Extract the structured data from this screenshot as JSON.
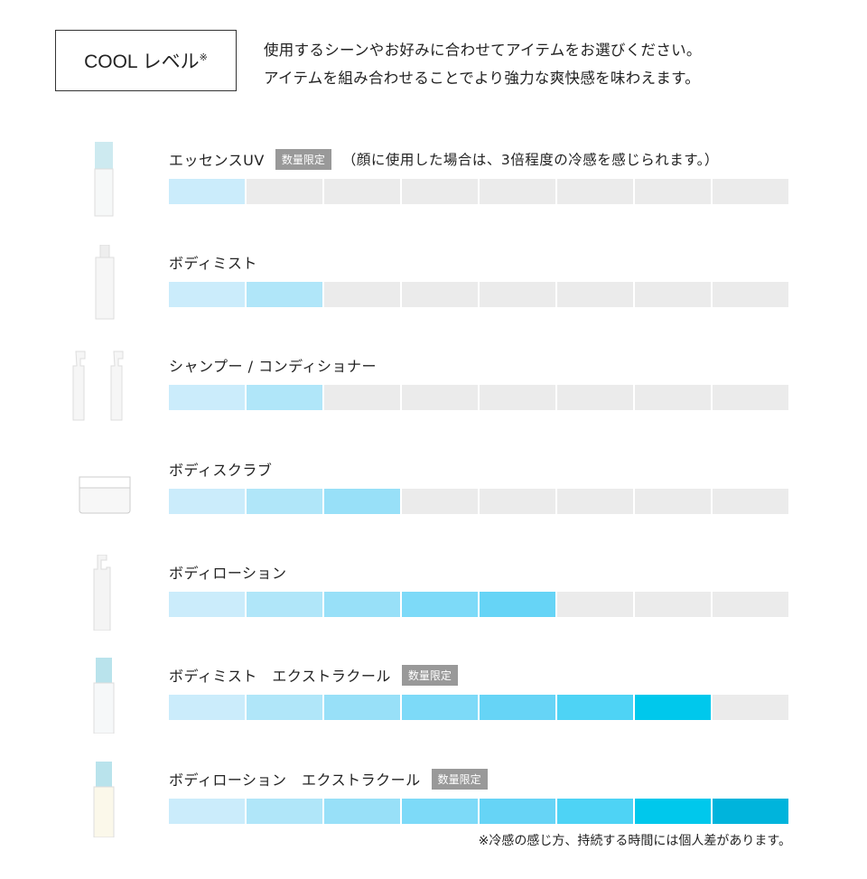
{
  "header": {
    "cool_label": "COOL レベル",
    "cool_mark": "※",
    "intro_line1": "使用するシーンやお好みに合わせてアイテムをお選びください。",
    "intro_line2": "アイテムを組み合わせることでより強力な爽快感を味わえます。"
  },
  "level_colors": [
    "#cbecfb",
    "#b0e6f9",
    "#98e0f8",
    "#7ddaf8",
    "#66d4f6",
    "#4ed3f5",
    "#00c8ec",
    "#00b4dc"
  ],
  "empty_color": "#ebebeb",
  "max_level": 8,
  "products": [
    {
      "name": "エッセンスUV",
      "badge": "数量限定",
      "note": "（顔に使用した場合は、3倍程度の冷感を感じられます。）",
      "level": 1,
      "image": "slim-bottle-blue-cap"
    },
    {
      "name": "ボディミスト",
      "badge": "",
      "note": "",
      "level": 2,
      "image": "spray-bottle"
    },
    {
      "name": "シャンプー / コンディショナー",
      "badge": "",
      "note": "",
      "level": 2,
      "image": "pump-bottles"
    },
    {
      "name": "ボディスクラブ",
      "badge": "",
      "note": "",
      "level": 3,
      "image": "jar"
    },
    {
      "name": "ボディローション",
      "badge": "",
      "note": "",
      "level": 5,
      "image": "pump-bottle"
    },
    {
      "name": "ボディミスト　エクストラクール",
      "badge": "数量限定",
      "note": "",
      "level": 7,
      "image": "bottle-blue-cap"
    },
    {
      "name": "ボディローション　エクストラクール",
      "badge": "数量限定",
      "note": "",
      "level": 8,
      "image": "bottle-blue-cap-cream"
    }
  ],
  "footnote": "※冷感の感じ方、持続する時間には個人差があります。"
}
